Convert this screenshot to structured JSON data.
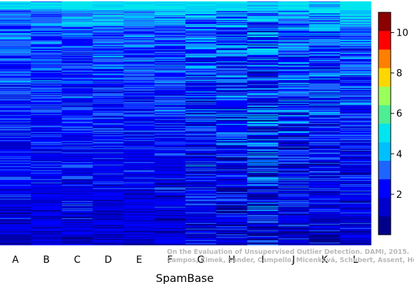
{
  "chart_data": {
    "type": "heatmap",
    "xlabel": "SpamBase",
    "columns": [
      "A",
      "B",
      "C",
      "D",
      "E",
      "F",
      "G",
      "H",
      "I",
      "J",
      "K",
      "L"
    ],
    "column_level_ranges": [
      {
        "column": "A",
        "min": 0,
        "max": 5
      },
      {
        "column": "B",
        "min": 0,
        "max": 5
      },
      {
        "column": "C",
        "min": 0,
        "max": 5
      },
      {
        "column": "D",
        "min": 0,
        "max": 5
      },
      {
        "column": "E",
        "min": 0,
        "max": 5
      },
      {
        "column": "F",
        "min": 0,
        "max": 5
      },
      {
        "column": "G",
        "min": 0,
        "max": 5
      },
      {
        "column": "H",
        "min": 0,
        "max": 5
      },
      {
        "column": "I",
        "min": 0,
        "max": 5
      },
      {
        "column": "J",
        "min": 0,
        "max": 5
      },
      {
        "column": "K",
        "min": 0,
        "max": 5
      },
      {
        "column": "L",
        "min": 0,
        "max": 5
      }
    ],
    "colorbar": {
      "range": [
        0,
        11
      ],
      "ticks": [
        2,
        4,
        6,
        8,
        10
      ],
      "colors": [
        "#00008B",
        "#0000CD",
        "#0000FF",
        "#1E64FF",
        "#00BFFF",
        "#00E5EE",
        "#4EEE94",
        "#9AFF5A",
        "#FFD700",
        "#FF7F00",
        "#FF0000",
        "#8B0000"
      ]
    },
    "legend_position": "right"
  },
  "watermark": {
    "line1": "On the Evaluation of Unsupervised Outlier Detection. DAMI, 2015.",
    "line2": "Campos, Zimek, Sander, Campello, Micenková, Schubert, Assent, Houle"
  }
}
